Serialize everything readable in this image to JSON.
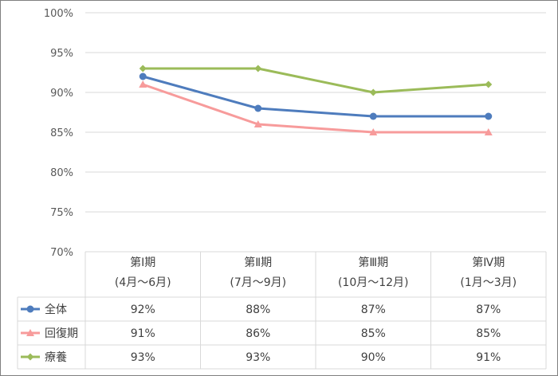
{
  "chart_data": {
    "type": "line",
    "categories": [
      {
        "line1": "第Ⅰ期",
        "line2": "(4月～6月)"
      },
      {
        "line1": "第Ⅱ期",
        "line2": "(7月～9月)"
      },
      {
        "line1": "第Ⅲ期",
        "line2": "(10月～12月)"
      },
      {
        "line1": "第Ⅳ期",
        "line2": "(1月～3月)"
      }
    ],
    "series": [
      {
        "name": "全体",
        "values": [
          92,
          88,
          87,
          87
        ],
        "labels": [
          "92%",
          "88%",
          "87%",
          "87%"
        ],
        "color": "#4e7cbd",
        "marker": "circle"
      },
      {
        "name": "回復期",
        "values": [
          91,
          86,
          85,
          85
        ],
        "labels": [
          "91%",
          "86%",
          "85%",
          "85%"
        ],
        "color": "#f79b9b",
        "marker": "triangle"
      },
      {
        "name": "療養",
        "values": [
          93,
          93,
          90,
          91
        ],
        "labels": [
          "93%",
          "93%",
          "90%",
          "91%"
        ],
        "color": "#9bbb59",
        "marker": "diamond"
      }
    ],
    "y_ticks": [
      "100%",
      "95%",
      "90%",
      "85%",
      "80%",
      "75%",
      "70%"
    ],
    "ylim": [
      70,
      100
    ],
    "grid": true,
    "legend": "data-table"
  }
}
